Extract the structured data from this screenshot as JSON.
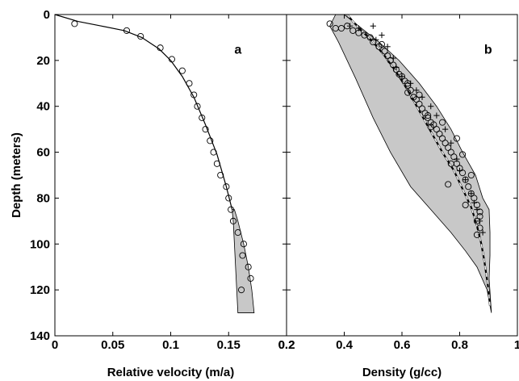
{
  "chart_data": [
    {
      "type": "line",
      "panel_label": "a",
      "xlabel": "Relative velocity (m/a)",
      "ylabel": "Depth (meters)",
      "xlim": [
        0,
        0.2
      ],
      "ylim": [
        0,
        140
      ],
      "y_inverted": true,
      "xticks": [
        "0",
        "0.05",
        "0.1",
        "0.15",
        "0.2"
      ],
      "yticks": [
        "0",
        "20",
        "40",
        "60",
        "80",
        "100",
        "120",
        "140"
      ],
      "grid": false,
      "band_color": "#c8c8c8",
      "band": {
        "depth": [
          85,
          90,
          100,
          110,
          120,
          130
        ],
        "lower": [
          0.153,
          0.154,
          0.155,
          0.156,
          0.157,
          0.158
        ],
        "upper": [
          0.155,
          0.158,
          0.163,
          0.167,
          0.17,
          0.172
        ]
      },
      "model_line": {
        "x": [
          0.0,
          0.02,
          0.04,
          0.06,
          0.075,
          0.09,
          0.1,
          0.11,
          0.12,
          0.13,
          0.14,
          0.148,
          0.153
        ],
        "y": [
          0,
          3,
          5,
          7,
          10,
          15,
          20,
          27,
          36,
          48,
          61,
          75,
          85
        ]
      },
      "observations": {
        "x": [
          0.017,
          0.062,
          0.074,
          0.091,
          0.101,
          0.11,
          0.116,
          0.12,
          0.123,
          0.127,
          0.13,
          0.134,
          0.137,
          0.14,
          0.143,
          0.148,
          0.15,
          0.152,
          0.154,
          0.158,
          0.163,
          0.162,
          0.167,
          0.169,
          0.161
        ],
        "y": [
          4,
          7,
          9.5,
          14.5,
          19.5,
          24.5,
          30,
          35,
          40,
          45,
          50,
          55,
          60,
          65,
          70,
          75,
          80,
          85,
          90,
          95,
          100,
          105,
          110,
          115,
          120
        ]
      }
    },
    {
      "type": "line",
      "panel_label": "b",
      "xlabel": "Density (g/cc)",
      "xlim": [
        0.2,
        1
      ],
      "ylim": [
        0,
        140
      ],
      "y_inverted": true,
      "xticks": [
        "0.2",
        "0.4",
        "0.6",
        "0.8",
        "1"
      ],
      "grid": false,
      "band_color": "#c8c8c8",
      "band": {
        "outline": [
          [
            0.4,
            0
          ],
          [
            0.46,
            6
          ],
          [
            0.52,
            12
          ],
          [
            0.59,
            20
          ],
          [
            0.66,
            30
          ],
          [
            0.72,
            40
          ],
          [
            0.77,
            50
          ],
          [
            0.81,
            60
          ],
          [
            0.855,
            70
          ],
          [
            0.88,
            80
          ],
          [
            0.902,
            85
          ],
          [
            0.905,
            95
          ],
          [
            0.905,
            105
          ],
          [
            0.902,
            115
          ],
          [
            0.91,
            130
          ],
          [
            0.895,
            120
          ],
          [
            0.86,
            110
          ],
          [
            0.82,
            103
          ],
          [
            0.77,
            95
          ],
          [
            0.7,
            85
          ],
          [
            0.63,
            75
          ],
          [
            0.56,
            60
          ],
          [
            0.5,
            45
          ],
          [
            0.44,
            28
          ],
          [
            0.38,
            12
          ],
          [
            0.35,
            5
          ],
          [
            0.37,
            0
          ]
        ]
      },
      "dashed_model_line": {
        "x": [
          0.41,
          0.43,
          0.46,
          0.5,
          0.54,
          0.58,
          0.62,
          0.66,
          0.7,
          0.74,
          0.78,
          0.81,
          0.84,
          0.86,
          0.875,
          0.885,
          0.893,
          0.9,
          0.905
        ],
        "y": [
          0,
          3,
          7,
          12,
          18,
          25,
          33,
          42,
          51,
          60,
          68,
          76,
          84,
          92,
          100,
          107,
          114,
          120,
          127
        ]
      },
      "cross_points": {
        "x": [
          0.42,
          0.45,
          0.5,
          0.51,
          0.53,
          0.55,
          0.57,
          0.58,
          0.6,
          0.63,
          0.65,
          0.67,
          0.7,
          0.72,
          0.75,
          0.77,
          0.79,
          0.8,
          0.82,
          0.84,
          0.85,
          0.86,
          0.87,
          0.88
        ],
        "y": [
          5,
          6,
          5,
          11,
          9,
          14,
          19,
          23,
          27,
          30,
          33,
          36,
          40,
          44,
          50,
          56,
          63,
          68,
          72,
          78,
          82,
          85,
          90,
          95
        ]
      },
      "circle_points": {
        "x": [
          0.35,
          0.37,
          0.39,
          0.41,
          0.43,
          0.45,
          0.47,
          0.49,
          0.5,
          0.52,
          0.53,
          0.54,
          0.55,
          0.56,
          0.57,
          0.58,
          0.59,
          0.6,
          0.61,
          0.62,
          0.62,
          0.63,
          0.64,
          0.65,
          0.66,
          0.67,
          0.68,
          0.69,
          0.7,
          0.71,
          0.72,
          0.73,
          0.74,
          0.75,
          0.76,
          0.77,
          0.78,
          0.79,
          0.8,
          0.81,
          0.82,
          0.83,
          0.84,
          0.85,
          0.86,
          0.87,
          0.87,
          0.86,
          0.87,
          0.86,
          0.62,
          0.66,
          0.74,
          0.79,
          0.81,
          0.77,
          0.84,
          0.82,
          0.7,
          0.69,
          0.76
        ],
        "y": [
          4,
          6,
          6,
          5,
          7,
          8,
          9,
          10,
          12,
          14,
          13,
          16,
          18,
          20,
          22,
          24,
          26,
          27,
          29,
          31,
          34,
          33,
          36,
          37,
          39,
          41,
          43,
          45,
          47,
          48,
          50,
          52,
          54,
          56,
          58,
          60,
          62,
          65,
          67,
          69,
          72,
          75,
          78,
          80,
          83,
          86,
          88,
          90,
          93,
          96,
          30,
          35,
          47,
          54,
          61,
          65,
          70,
          83,
          49,
          44,
          74
        ]
      }
    }
  ]
}
